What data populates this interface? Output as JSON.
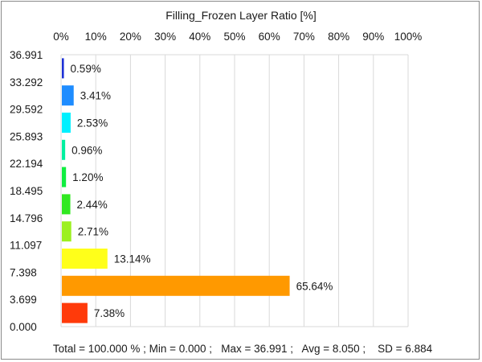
{
  "chart_data": {
    "type": "bar",
    "orientation": "horizontal",
    "title": "Filling_Frozen Layer Ratio [%]",
    "x_axis": {
      "position": "top",
      "range": [
        0,
        100
      ],
      "tick_labels": [
        "0%",
        "10%",
        "20%",
        "30%",
        "40%",
        "50%",
        "60%",
        "70%",
        "80%",
        "90%",
        "100%"
      ]
    },
    "y_axis": {
      "tick_labels": [
        "36.991",
        "33.292",
        "29.592",
        "25.893",
        "22.194",
        "18.495",
        "14.796",
        "11.097",
        "7.398",
        "3.699",
        "0.000"
      ]
    },
    "grid": true,
    "bars": [
      {
        "value": 0.59,
        "label": "0.59%",
        "color": "#1c2fd6"
      },
      {
        "value": 3.41,
        "label": "3.41%",
        "color": "#1e8cff"
      },
      {
        "value": 2.53,
        "label": "2.53%",
        "color": "#00f0ff"
      },
      {
        "value": 0.96,
        "label": "0.96%",
        "color": "#00f0a0"
      },
      {
        "value": 1.2,
        "label": "1.20%",
        "color": "#10ee40"
      },
      {
        "value": 2.44,
        "label": "2.44%",
        "color": "#30e820"
      },
      {
        "value": 2.71,
        "label": "2.71%",
        "color": "#9cf020"
      },
      {
        "value": 13.14,
        "label": "13.14%",
        "color": "#ffff1a"
      },
      {
        "value": 65.64,
        "label": "65.64%",
        "color": "#ff9900"
      },
      {
        "value": 7.38,
        "label": "7.38%",
        "color": "#ff3a0a"
      }
    ],
    "stats_text": "Total = 100.000 % ; Min = 0.000 ;   Max = 36.991 ;   Avg = 8.050 ;    SD = 6.884"
  }
}
